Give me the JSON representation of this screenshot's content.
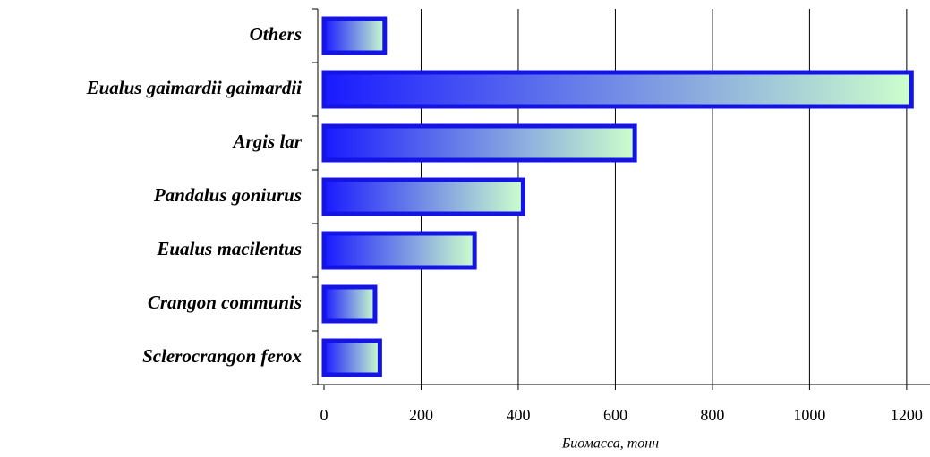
{
  "chart_data": {
    "type": "barh",
    "x_label": "Биомасса, тонн",
    "categories": [
      "Others",
      "Eualus gaimardii gaimardii",
      "Argis lar",
      "Pandalus goniurus",
      "Eualus macilentus",
      "Crangon communis",
      "Sclerocrangon ferox"
    ],
    "values": [
      125,
      1210,
      640,
      410,
      310,
      105,
      115
    ],
    "color": [
      "#1a1aff",
      "#ccffcc"
    ],
    "edge_color": "#1414e6",
    "xlim": [
      0,
      1250
    ],
    "xticks": [
      0,
      200,
      400,
      600,
      800,
      1000,
      1200
    ],
    "grid": true
  }
}
